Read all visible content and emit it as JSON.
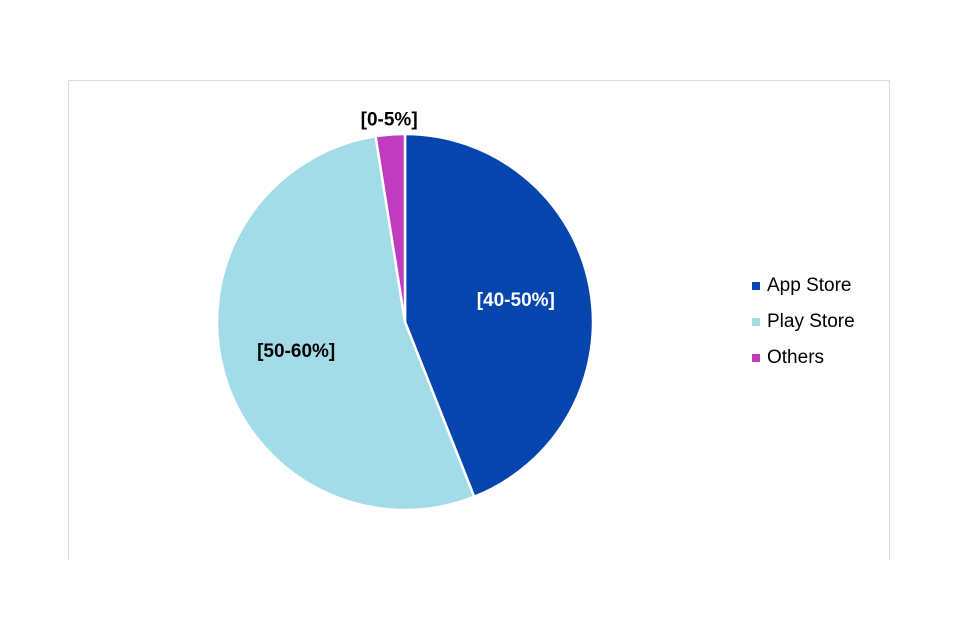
{
  "chart_data": {
    "type": "pie",
    "categories": [
      "App Store",
      "Play Store",
      "Others"
    ],
    "values": [
      44,
      53.5,
      2.5
    ],
    "value_labels": [
      "[40-50%]",
      "[50-60%]",
      "[0-5%]"
    ],
    "colors": [
      "#0645ad",
      "#a4dbe8",
      "#c13bbf"
    ],
    "value_label_colors": [
      "#ffffff",
      "#000000",
      "#000000"
    ],
    "legend": "right"
  }
}
